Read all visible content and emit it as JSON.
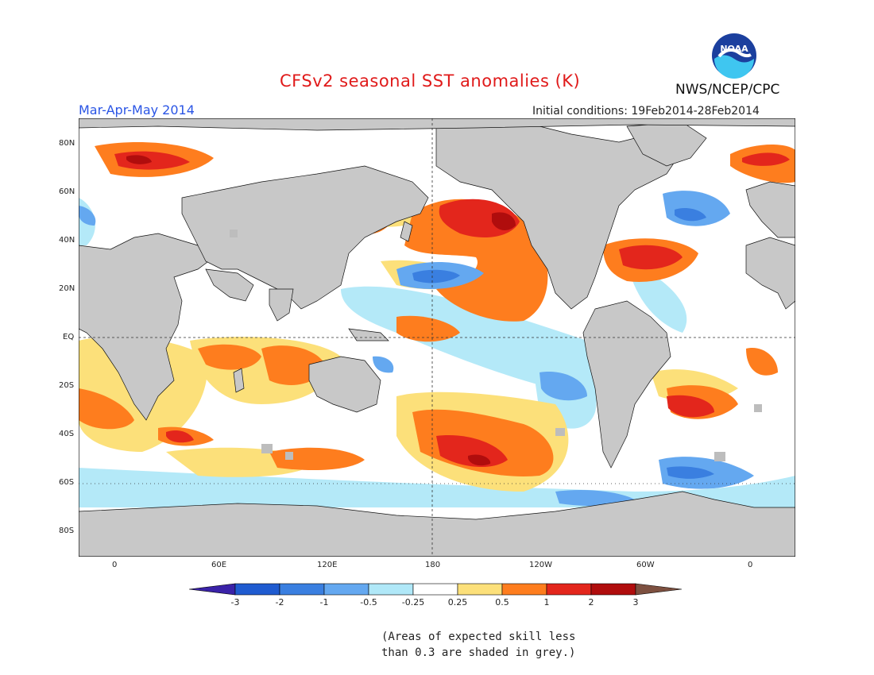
{
  "header": {
    "title": "CFSv2 seasonal SST anomalies (K)",
    "season": "Mar-Apr-May 2014",
    "initial_conditions": "Initial conditions: 19Feb2014-28Feb2014",
    "agency": "NWS/NCEP/CPC",
    "logo_text": "NOAA"
  },
  "map": {
    "lat_labels": [
      "80N",
      "60N",
      "40N",
      "20N",
      "EQ",
      "20S",
      "40S",
      "60S",
      "80S"
    ],
    "lon_labels": [
      "0",
      "60E",
      "120E",
      "180",
      "120W",
      "60W",
      "0"
    ],
    "land_color": "#c8c8c8",
    "ocean_neutral_color": "#ffffff"
  },
  "colorbar": {
    "labels": [
      "-3",
      "-2",
      "-1",
      "-0.5",
      "-0.25",
      "0.25",
      "0.5",
      "1",
      "2",
      "3"
    ],
    "colors": [
      "#3a22a8",
      "#1f5bd0",
      "#3a7fe0",
      "#64a8f0",
      "#b0e8f8",
      "#ffffff",
      "#fce07a",
      "#fe7d1e",
      "#e3261c",
      "#b00d0d",
      "#7d5040"
    ]
  },
  "footnote": {
    "line1": "(Areas of expected skill less",
    "line2": "than 0.3 are shaded in grey.)"
  }
}
